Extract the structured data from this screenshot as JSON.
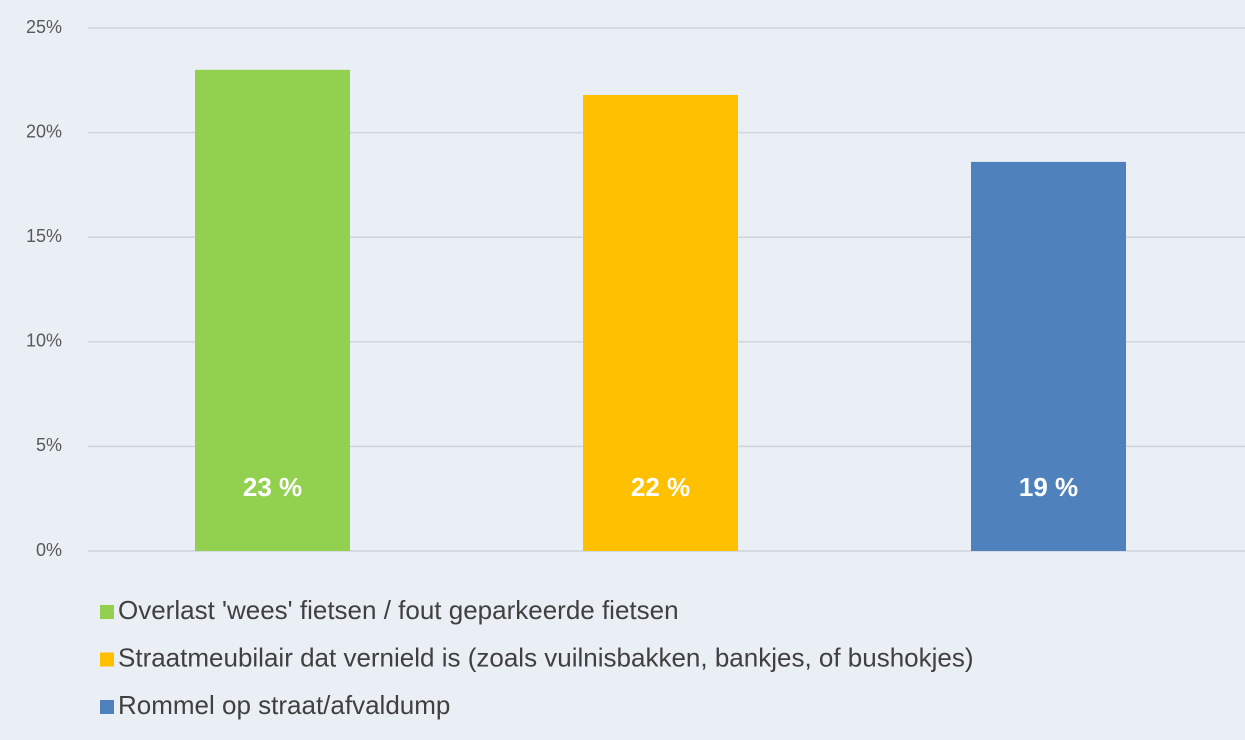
{
  "chart_data": {
    "type": "bar",
    "categories": [
      null
    ],
    "series": [
      {
        "name": "Overlast 'wees' fietsen / fout geparkeerde fietsen",
        "color": "#92d050",
        "values": [
          23.0
        ],
        "value_labels": [
          "23 %"
        ]
      },
      {
        "name": "Straatmeubilair dat vernield is (zoals vuilnisbakken, bankjes, of bushokjes)",
        "color": "#ffc000",
        "values": [
          21.8
        ],
        "value_labels": [
          "22 %"
        ]
      },
      {
        "name": "Rommel op straat/afvaldump",
        "color": "#4f81bd",
        "values": [
          18.6
        ],
        "value_labels": [
          "19 %"
        ]
      }
    ],
    "ylim": [
      0,
      25
    ],
    "yticks": [
      {
        "value": 0,
        "label": "0%"
      },
      {
        "value": 5,
        "label": "5%"
      },
      {
        "value": 10,
        "label": "10%"
      },
      {
        "value": 15,
        "label": "15%"
      },
      {
        "value": 20,
        "label": "20%"
      },
      {
        "value": 25,
        "label": "25%"
      }
    ],
    "grid": true,
    "legend": "bottom"
  }
}
